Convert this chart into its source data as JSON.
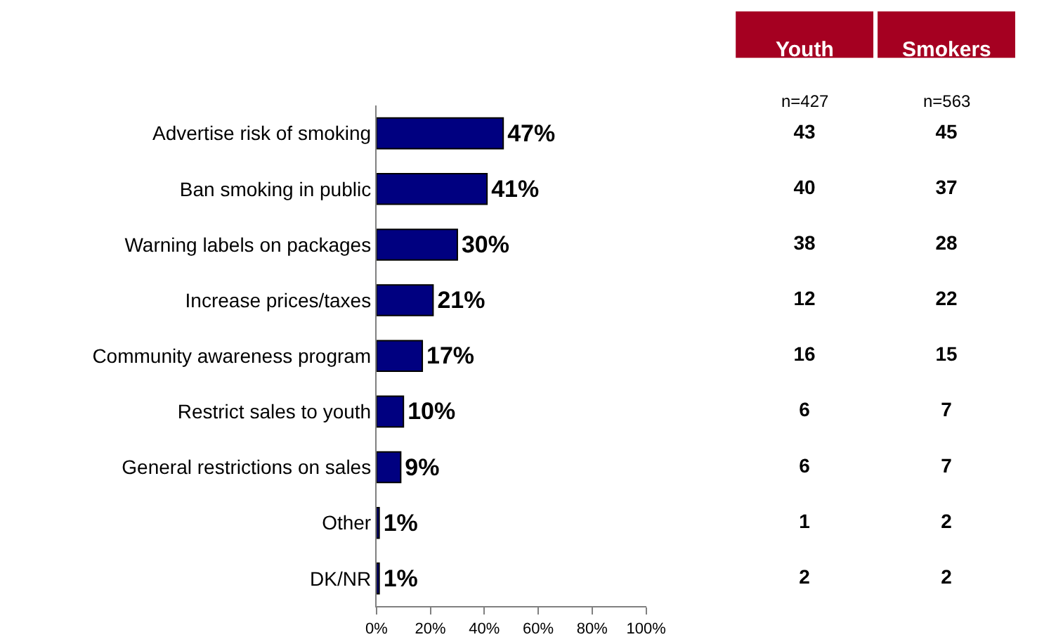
{
  "chart_data": [
    {
      "type": "bar",
      "orientation": "horizontal",
      "color": "#000080",
      "categories": [
        "Advertise risk of smoking",
        "Ban smoking in public",
        "Warning labels on packages",
        "Increase prices/taxes",
        "Community awareness program",
        "Restrict sales to youth",
        "General restrictions on sales",
        "Other",
        "DK/NR"
      ],
      "values": [
        47,
        41,
        30,
        21,
        17,
        10,
        9,
        1,
        1
      ],
      "value_labels": [
        "47%",
        "41%",
        "30%",
        "21%",
        "17%",
        "10%",
        "9%",
        "1%",
        "1%"
      ],
      "xlim": [
        0,
        100
      ],
      "xticks": [
        {
          "value": 0,
          "label": "0%"
        },
        {
          "value": 20,
          "label": "20%"
        },
        {
          "value": 40,
          "label": "40%"
        },
        {
          "value": 60,
          "label": "60%"
        },
        {
          "value": 80,
          "label": "80%"
        },
        {
          "value": 100,
          "label": "100%"
        }
      ]
    },
    {
      "type": "other",
      "annotations": [
        "Youth",
        "Smokers",
        "n=427",
        "n=563",
        "43",
        "45",
        "40",
        "37",
        "38",
        "28",
        "12",
        "22",
        "16",
        "15",
        "6",
        "7",
        "6",
        "7",
        "1",
        "2",
        "2",
        "2"
      ]
    }
  ]
}
